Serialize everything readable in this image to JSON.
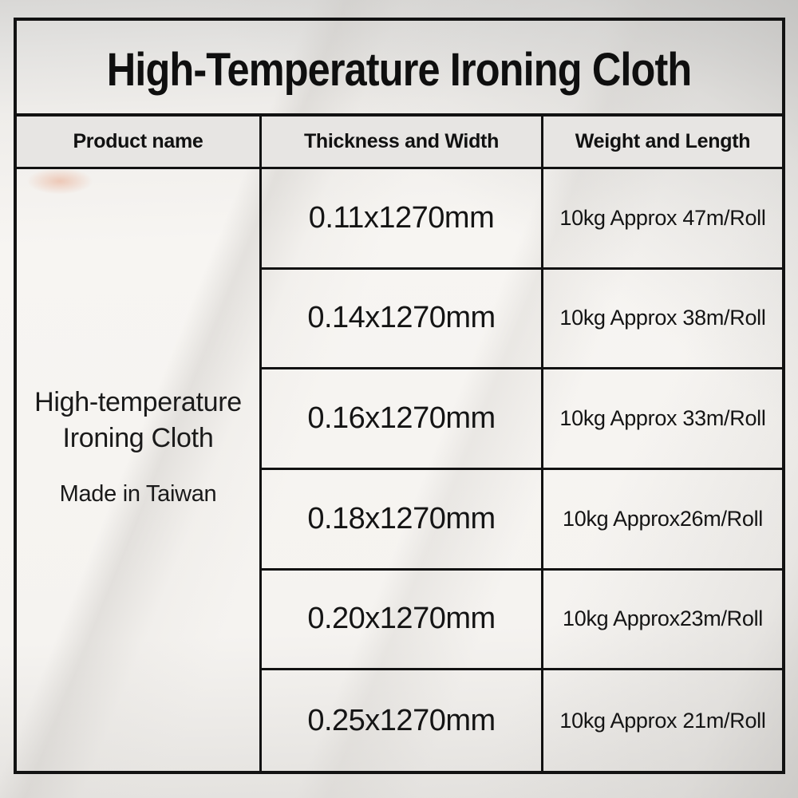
{
  "title": "High-Temperature Ironing Cloth",
  "table": {
    "headers": [
      "Product name",
      "Thickness and Width",
      "Weight and Length"
    ],
    "product": {
      "name_lines": [
        "High-temperature",
        "Ironing Cloth"
      ],
      "origin": "Made in Taiwan"
    },
    "rows": [
      {
        "thickness": "0.11x1270mm",
        "weight": "10kg Approx 47m/Roll"
      },
      {
        "thickness": "0.14x1270mm",
        "weight": "10kg Approx 38m/Roll"
      },
      {
        "thickness": "0.16x1270mm",
        "weight": "10kg Approx 33m/Roll"
      },
      {
        "thickness": "0.18x1270mm",
        "weight": "10kg Approx26m/Roll"
      },
      {
        "thickness": "0.20x1270mm",
        "weight": "10kg Approx23m/Roll"
      },
      {
        "thickness": "0.25x1270mm",
        "weight": "10kg Approx 21m/Roll"
      }
    ]
  },
  "colors": {
    "border": "#121212",
    "header_bg": "#e7e5e3",
    "text": "#161616",
    "accent_spot": "#e9ad92"
  }
}
